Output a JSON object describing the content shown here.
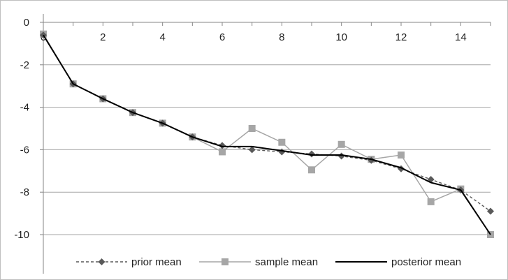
{
  "chart_data": {
    "type": "line",
    "title": "",
    "xlabel": "",
    "ylabel": "",
    "xlim": [
      0,
      15
    ],
    "ylim": [
      -10,
      0
    ],
    "x_ticks": [
      0,
      2,
      4,
      6,
      8,
      10,
      12,
      14
    ],
    "y_ticks": [
      0,
      -2,
      -4,
      -6,
      -8,
      -10
    ],
    "grid": "horizontal",
    "legend_position": "bottom",
    "x": [
      0,
      1,
      2,
      3,
      4,
      5,
      6,
      7,
      8,
      9,
      10,
      11,
      12,
      13,
      14,
      15
    ],
    "series": [
      {
        "name": "prior mean",
        "style": "dashed-diamond",
        "color": "#595959",
        "values": [
          -0.6,
          -2.9,
          -3.6,
          -4.25,
          -4.75,
          -5.4,
          -5.8,
          -6.0,
          -6.1,
          -6.2,
          -6.3,
          -6.5,
          -6.9,
          -7.4,
          -7.9,
          -8.9
        ]
      },
      {
        "name": "sample mean",
        "style": "solid-square",
        "color": "#a6a6a6",
        "values": [
          -0.55,
          -2.9,
          -3.6,
          -4.25,
          -4.75,
          -5.4,
          -6.1,
          -5.0,
          -5.65,
          -6.95,
          -5.75,
          -6.45,
          -6.25,
          -8.45,
          -7.85,
          -10.0
        ]
      },
      {
        "name": "posterior mean",
        "style": "solid",
        "color": "#000000",
        "values": [
          -0.6,
          -2.9,
          -3.6,
          -4.25,
          -4.75,
          -5.4,
          -5.85,
          -5.85,
          -6.05,
          -6.25,
          -6.25,
          -6.45,
          -6.85,
          -7.55,
          -7.9,
          -10.0
        ]
      }
    ]
  }
}
